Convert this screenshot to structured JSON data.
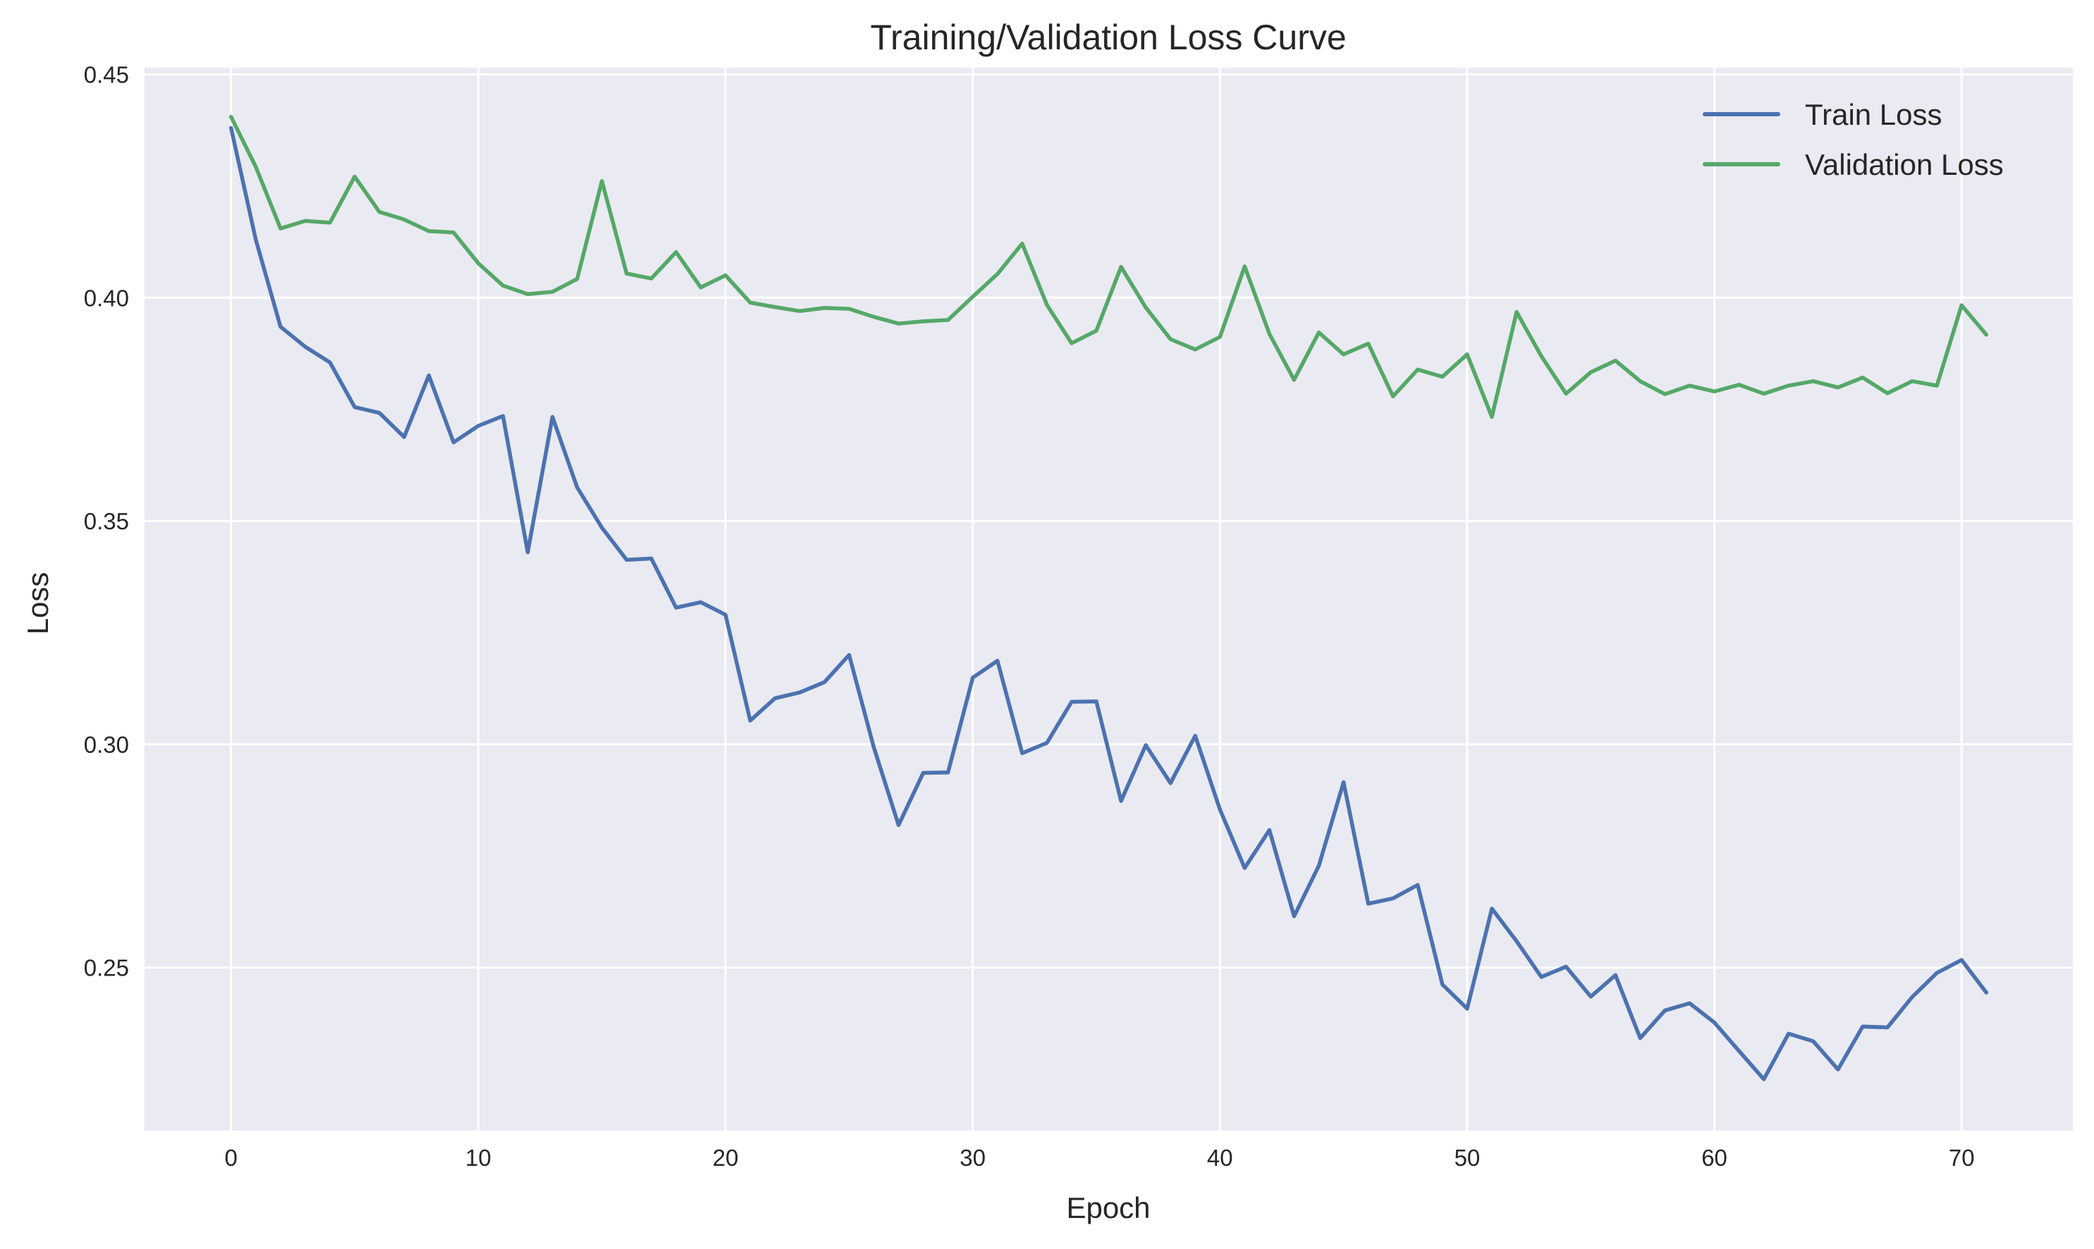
{
  "chart_data": {
    "type": "line",
    "title": "Training/Validation Loss Curve",
    "xlabel": "Epoch",
    "ylabel": "Loss",
    "xlim": [
      -3.5,
      74.5
    ],
    "ylim": [
      0.2135,
      0.4515
    ],
    "xticks": [
      0,
      10,
      20,
      30,
      40,
      50,
      60,
      70
    ],
    "yticks": [
      0.25,
      0.3,
      0.35,
      0.4,
      0.45
    ],
    "ytick_labels": [
      "0.25",
      "0.30",
      "0.35",
      "0.40",
      "0.45"
    ],
    "grid": true,
    "legend_position": "top-right",
    "background_color": "#eaeaf2",
    "x": [
      0,
      1,
      2,
      3,
      4,
      5,
      6,
      7,
      8,
      9,
      10,
      11,
      12,
      13,
      14,
      15,
      16,
      17,
      18,
      19,
      20,
      21,
      22,
      23,
      24,
      25,
      26,
      27,
      28,
      29,
      30,
      31,
      32,
      33,
      34,
      35,
      36,
      37,
      38,
      39,
      40,
      41,
      42,
      43,
      44,
      45,
      46,
      47,
      48,
      49,
      50,
      51,
      52,
      53,
      54,
      55,
      56,
      57,
      58,
      59,
      60,
      61,
      62,
      63,
      64,
      65,
      66,
      67,
      68,
      69,
      70,
      71
    ],
    "series": [
      {
        "name": "Train Loss",
        "color": "#4c72b0",
        "values": [
          0.438,
          0.413,
          0.3935,
          0.389,
          0.3855,
          0.3755,
          0.3742,
          0.3688,
          0.3826,
          0.3676,
          0.3713,
          0.3735,
          0.343,
          0.3733,
          0.3575,
          0.3485,
          0.3413,
          0.3416,
          0.3306,
          0.3318,
          0.329,
          0.3053,
          0.3103,
          0.3116,
          0.3139,
          0.32,
          0.2993,
          0.2819,
          0.2936,
          0.2937,
          0.3149,
          0.3187,
          0.298,
          0.3003,
          0.3095,
          0.3096,
          0.2873,
          0.2998,
          0.2913,
          0.3019,
          0.2854,
          0.2723,
          0.2808,
          0.2615,
          0.2728,
          0.2915,
          0.2643,
          0.2655,
          0.2685,
          0.2462,
          0.2408,
          0.2632,
          0.2559,
          0.2479,
          0.2502,
          0.2435,
          0.2483,
          0.2342,
          0.2404,
          0.242,
          0.2377,
          0.2313,
          0.225,
          0.2352,
          0.2335,
          0.2272,
          0.2368,
          0.2366,
          0.2434,
          0.2488,
          0.2517,
          0.2444
        ]
      },
      {
        "name": "Validation Loss",
        "color": "#55a868",
        "values": [
          0.4405,
          0.4293,
          0.4155,
          0.4172,
          0.4168,
          0.4271,
          0.4192,
          0.4175,
          0.4149,
          0.4146,
          0.4077,
          0.4027,
          0.4008,
          0.4013,
          0.4042,
          0.4261,
          0.4054,
          0.4043,
          0.4102,
          0.4023,
          0.405,
          0.3989,
          0.3979,
          0.397,
          0.3977,
          0.3975,
          0.3957,
          0.3942,
          0.3947,
          0.395,
          0.4002,
          0.4053,
          0.4121,
          0.3984,
          0.3898,
          0.3926,
          0.4069,
          0.3978,
          0.3907,
          0.3884,
          0.3912,
          0.407,
          0.3919,
          0.3816,
          0.3922,
          0.3873,
          0.3897,
          0.3779,
          0.3839,
          0.3823,
          0.3873,
          0.3733,
          0.3968,
          0.3869,
          0.3785,
          0.3833,
          0.3859,
          0.3813,
          0.3784,
          0.3803,
          0.379,
          0.3805,
          0.3785,
          0.3803,
          0.3813,
          0.3799,
          0.3821,
          0.3786,
          0.3813,
          0.3803,
          0.3983,
          0.3917
        ]
      }
    ]
  }
}
